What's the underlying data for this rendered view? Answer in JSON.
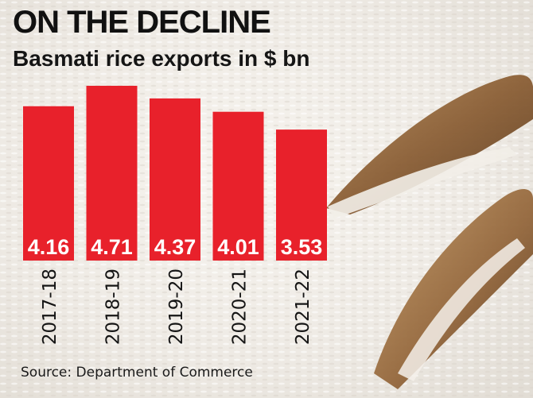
{
  "header": {
    "title": "ON THE DECLINE",
    "subtitle": "Basmati rice exports in $ bn"
  },
  "source": "Source: Department of Commerce",
  "colors": {
    "bar": "#e8212b",
    "bar_label": "#ffffff",
    "tick_label": "#151515",
    "background": "#f3efea"
  },
  "chart_data": {
    "type": "bar",
    "title": "ON THE DECLINE",
    "subtitle": "Basmati rice exports in $ bn",
    "categories": [
      "2017-18",
      "2018-19",
      "2019-20",
      "2020-21",
      "2021-22"
    ],
    "values": [
      4.16,
      4.71,
      4.37,
      4.01,
      3.53
    ],
    "value_labels": [
      "4.16",
      "4.71",
      "4.37",
      "4.01",
      "3.53"
    ],
    "xlabel": "",
    "ylabel": "",
    "ylim": [
      0,
      4.71
    ],
    "grid": false,
    "legend": "none"
  }
}
